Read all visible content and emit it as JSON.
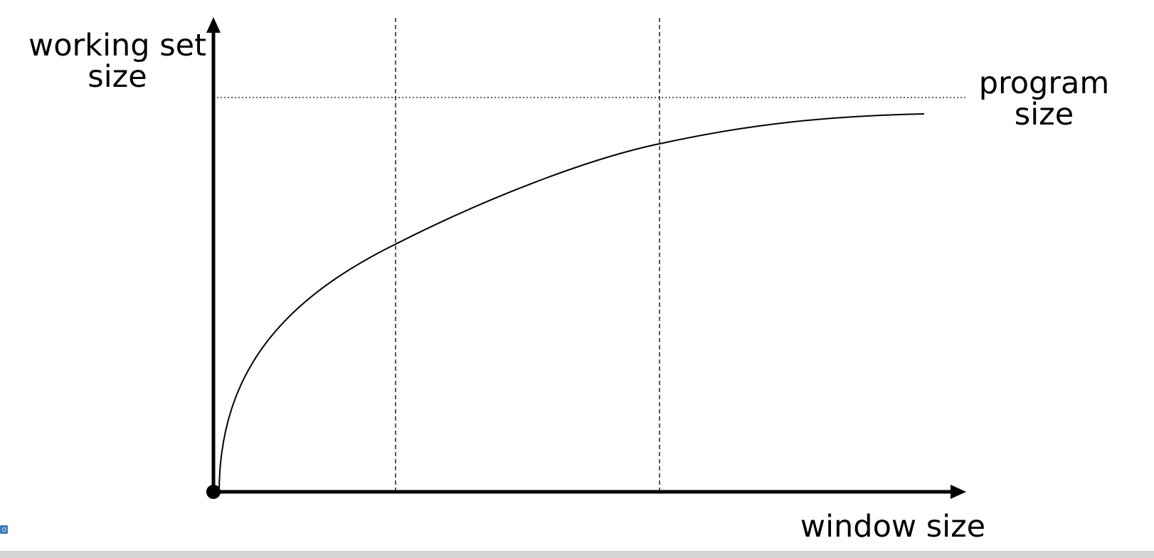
{
  "diagram": {
    "y_axis_label_line1": "working set",
    "y_axis_label_line2": "size",
    "x_axis_label": "window size",
    "limit_label_line1": "program",
    "limit_label_line2": "size"
  }
}
